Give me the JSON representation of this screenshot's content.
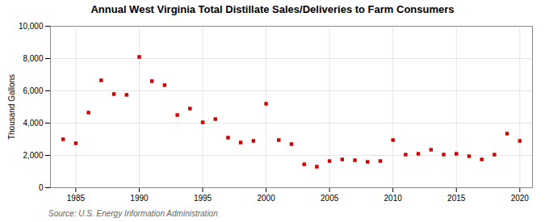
{
  "chart_data": {
    "type": "scatter",
    "title": "Annual West Virginia Total Distillate Sales/Deliveries to Farm Consumers",
    "ylabel": "Thousand Gallons",
    "annotations": [
      "Source: U.S. Energy Information Administration"
    ],
    "x": [
      1984,
      1985,
      1986,
      1987,
      1988,
      1989,
      1990,
      1991,
      1992,
      1993,
      1994,
      1995,
      1996,
      1997,
      1998,
      1999,
      2000,
      2001,
      2002,
      2003,
      2004,
      2005,
      2006,
      2007,
      2008,
      2009,
      2010,
      2011,
      2012,
      2013,
      2014,
      2015,
      2016,
      2017,
      2018,
      2019,
      2020
    ],
    "values": [
      3000,
      2750,
      4650,
      6650,
      5800,
      5750,
      8100,
      6600,
      6350,
      4500,
      4900,
      4050,
      4250,
      3100,
      2800,
      2900,
      5200,
      2950,
      2700,
      1450,
      1300,
      1650,
      1750,
      1700,
      1600,
      1650,
      2950,
      2050,
      2100,
      2350,
      2050,
      2100,
      1950,
      1750,
      2050,
      3350,
      2900
    ],
    "color": "#cc0000",
    "marker": "square",
    "xlim": [
      1983,
      2021
    ],
    "xticks": [
      1985,
      1990,
      1995,
      2000,
      2005,
      2010,
      2015,
      2020
    ],
    "ylim": [
      0,
      10000
    ],
    "yticks": [
      0,
      {
        "value": 2000,
        "label": "2,000"
      },
      {
        "value": 4000,
        "label": "4,000"
      },
      {
        "value": 6000,
        "label": "6,000"
      },
      {
        "value": 8000,
        "label": "8,000"
      },
      {
        "value": 10000,
        "label": "10,000"
      }
    ],
    "grid": true
  }
}
